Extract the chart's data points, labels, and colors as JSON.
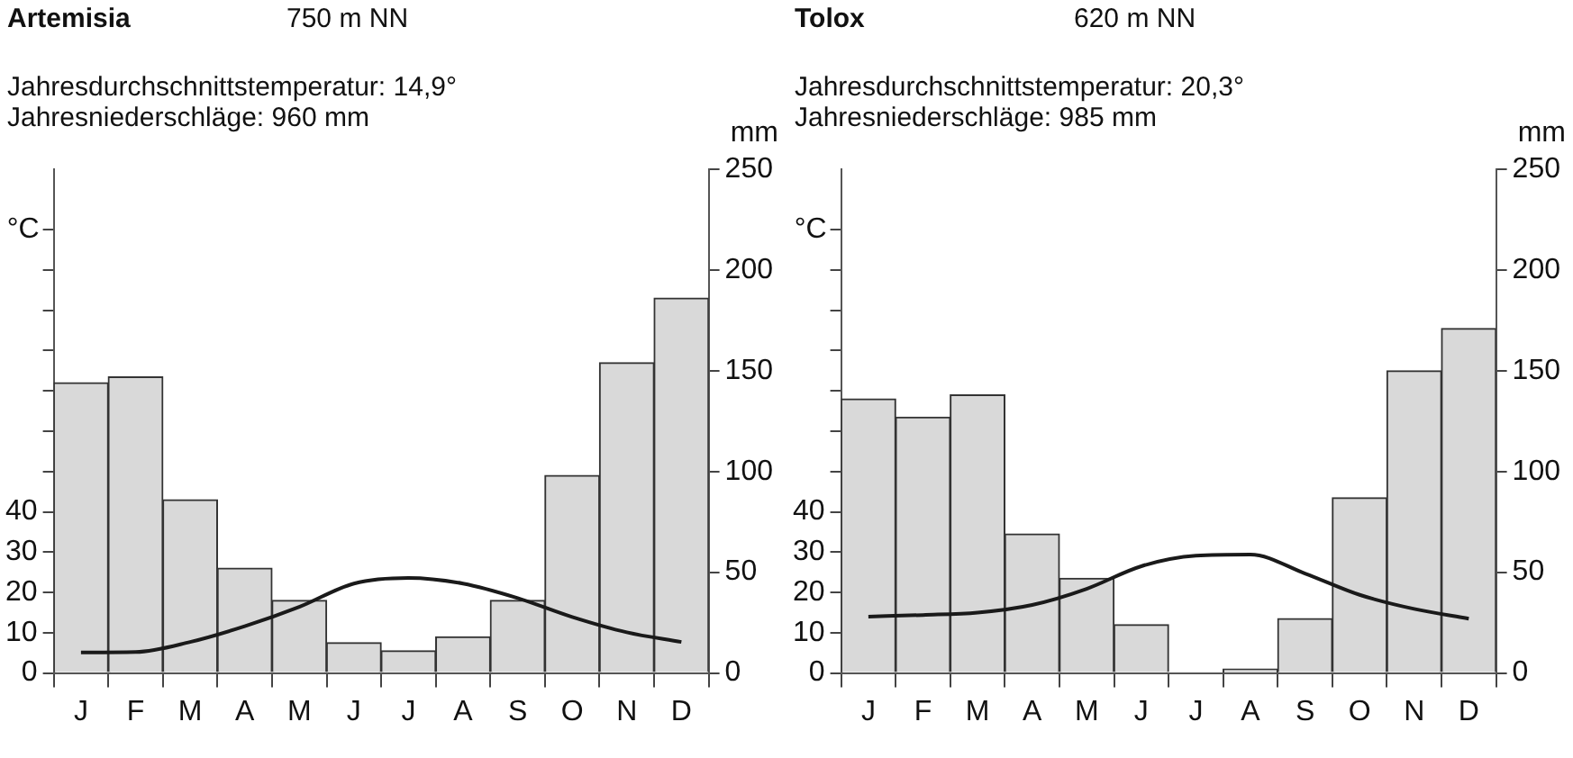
{
  "chart_data": [
    {
      "type": "bar",
      "title": "Artemisia",
      "subtitle": "750 m NN",
      "annotations": [
        "Jahresdurchschnittstemperatur: 14,9°",
        "Jahresniederschläge: 960 mm"
      ],
      "categories": [
        "J",
        "F",
        "M",
        "A",
        "M",
        "J",
        "J",
        "A",
        "S",
        "O",
        "N",
        "D"
      ],
      "ylabel": "°C",
      "y2label": "mm",
      "series": [
        {
          "axis": "y2",
          "color": "#d9d9d9",
          "values": [
            144,
            147,
            86,
            52,
            36,
            15,
            11,
            18,
            36,
            98,
            154,
            186
          ]
        },
        {
          "type": "line",
          "color": "#1a1a1a",
          "values": [
            5.1,
            5.2,
            7.7,
            11.6,
            16.4,
            22.2,
            23.6,
            22.2,
            18.6,
            13.9,
            10.1,
            7.7
          ]
        }
      ],
      "ylim": [
        0,
        125
      ],
      "yticks": [
        0,
        10,
        20,
        30,
        40,
        {
          "value": 50,
          "label": null
        },
        {
          "value": 60,
          "label": null
        },
        {
          "value": 70,
          "label": null
        },
        {
          "value": 80,
          "label": null
        },
        {
          "value": 90,
          "label": null
        },
        {
          "value": 100,
          "label": null
        },
        {
          "value": 110,
          "label": null
        }
      ],
      "y2lim": [
        0,
        250
      ],
      "y2ticks": [
        0,
        50,
        100,
        150,
        200,
        250
      ],
      "grid": false,
      "marker": "none"
    },
    {
      "type": "bar",
      "title": "Tolox",
      "subtitle": "620 m NN",
      "annotations": [
        "Jahresdurchschnittstemperatur: 20,3°",
        "Jahresniederschläge: 985 mm"
      ],
      "categories": [
        "J",
        "F",
        "M",
        "A",
        "M",
        "J",
        "J",
        "A",
        "S",
        "O",
        "N",
        "D"
      ],
      "ylabel": "°C",
      "y2label": "mm",
      "series": [
        {
          "axis": "y2",
          "color": "#d9d9d9",
          "values": [
            136,
            127,
            138,
            69,
            47,
            24,
            0,
            2,
            27,
            87,
            150,
            171
          ]
        },
        {
          "type": "line",
          "color": "#1a1a1a",
          "values": [
            14.0,
            14.4,
            15.0,
            16.9,
            20.9,
            26.5,
            29.1,
            29.4,
            24.7,
            19.4,
            15.9,
            13.5
          ]
        }
      ],
      "ylim": [
        0,
        125
      ],
      "yticks": [
        0,
        10,
        20,
        30,
        40,
        {
          "value": 50,
          "label": null
        },
        {
          "value": 60,
          "label": null
        },
        {
          "value": 70,
          "label": null
        },
        {
          "value": 80,
          "label": null
        },
        {
          "value": 90,
          "label": null
        },
        {
          "value": 100,
          "label": null
        },
        {
          "value": 110,
          "label": null
        }
      ],
      "y2lim": [
        0,
        250
      ],
      "y2ticks": [
        0,
        50,
        100,
        150,
        200,
        250
      ],
      "grid": false,
      "marker": "none"
    }
  ]
}
